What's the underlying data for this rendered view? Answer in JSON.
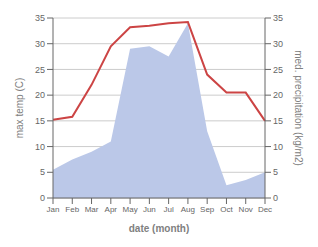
{
  "chart_data": {
    "type": "combo",
    "xlabel": "date (month)",
    "ylabel": "max temp (C)",
    "y2label": "med. precipitation (kg/m2)",
    "categories": [
      "Jan",
      "Feb",
      "Mar",
      "Apr",
      "May",
      "Jun",
      "Jul",
      "Aug",
      "Sep",
      "Oct",
      "Nov",
      "Dec"
    ],
    "series": [
      {
        "type": "area",
        "color": "#bbc8e8",
        "values": [
          5.5,
          7.5,
          9.0,
          11.0,
          29.0,
          29.5,
          27.5,
          34.0,
          13.0,
          2.5,
          3.5,
          5.0
        ]
      },
      {
        "type": "line",
        "color": "#cc4444",
        "axis": "y2",
        "values": [
          15.2,
          15.8,
          22.0,
          29.5,
          33.2,
          33.5,
          34.0,
          34.2,
          24.0,
          20.5,
          20.5,
          15.0
        ]
      }
    ],
    "ylim": [
      0,
      35
    ],
    "yticks": [
      0,
      5,
      10,
      15,
      20,
      25,
      30,
      35
    ],
    "y2lim": [
      0,
      35
    ],
    "y2ticks": [
      0,
      5,
      10,
      15,
      20,
      25,
      30,
      35
    ],
    "grid": true
  }
}
